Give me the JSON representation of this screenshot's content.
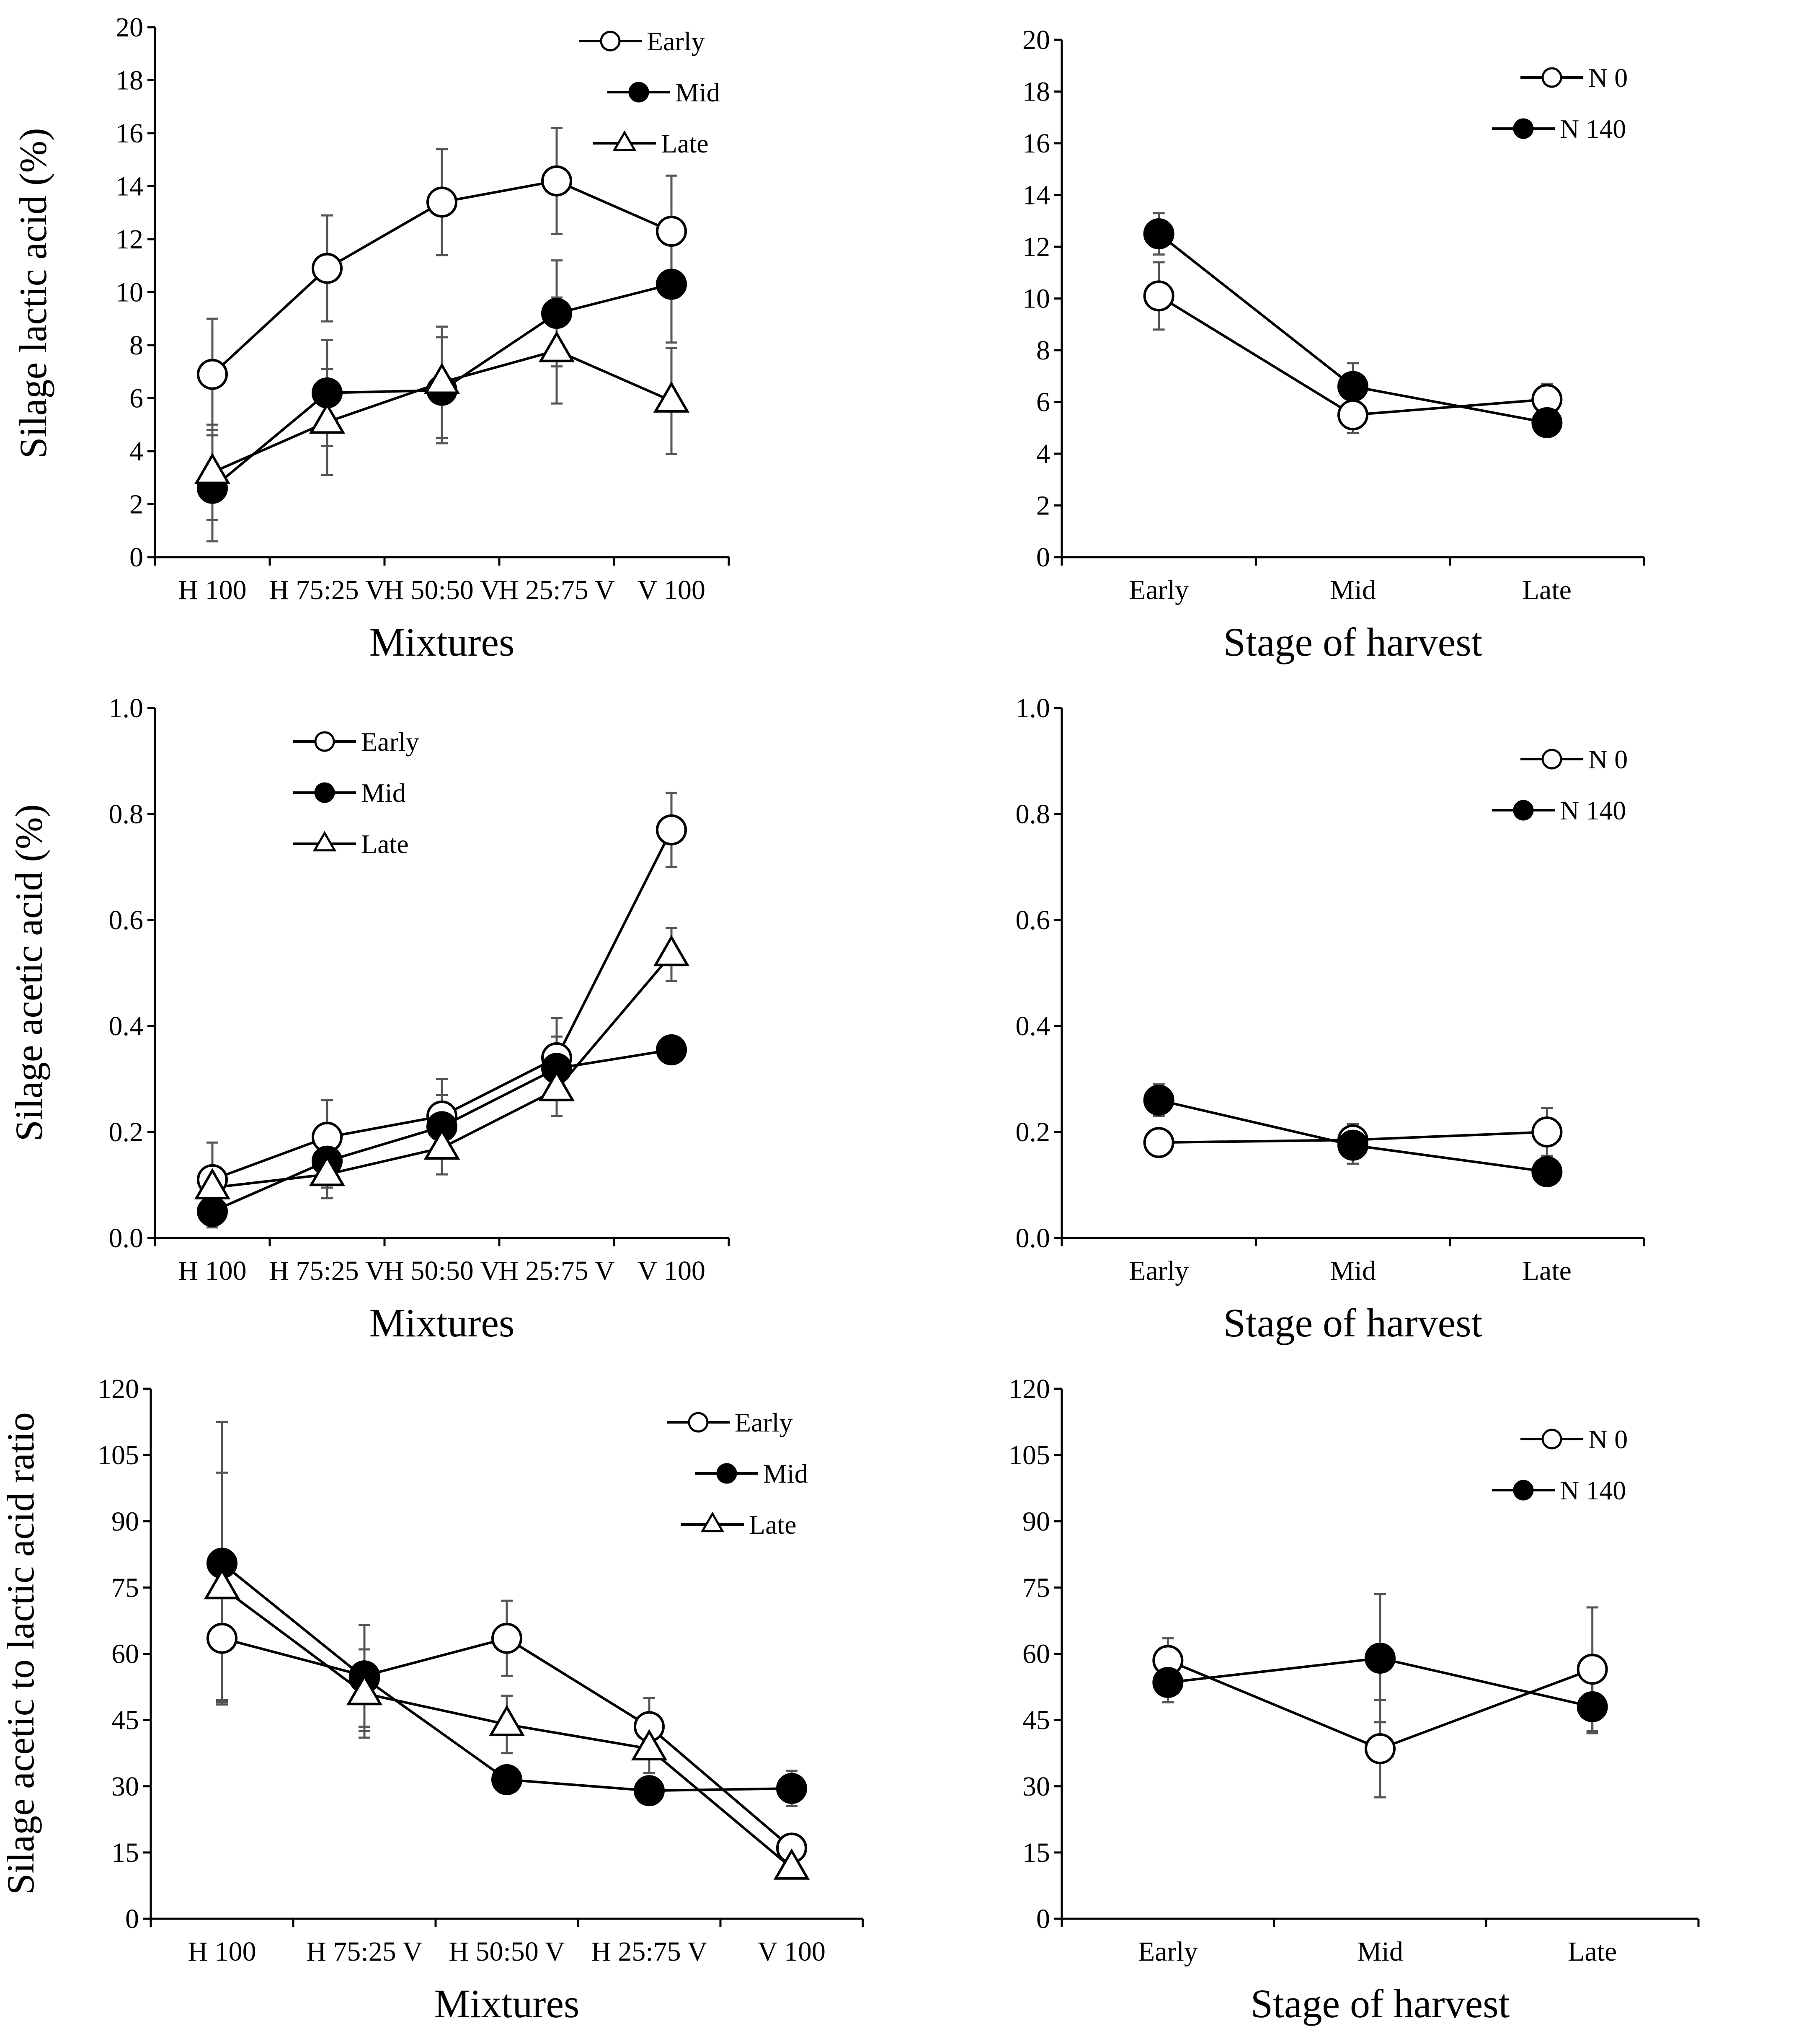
{
  "colors": {
    "ink": "#000000",
    "open_fill": "#ffffff",
    "error_bar": "#555555"
  },
  "chart_data": [
    {
      "id": "lactic-mixtures",
      "type": "line",
      "ylabel": "Silage lactic acid (%)",
      "xlabel": "Mixtures",
      "categories": [
        "H 100",
        "H 75:25 V",
        "H 50:50 V",
        "H 25:75 V",
        "V 100"
      ],
      "ylim": [
        0,
        20
      ],
      "yticks": [
        0,
        2,
        4,
        6,
        8,
        10,
        12,
        14,
        16,
        18,
        20
      ],
      "ytick_labels": [
        "0",
        "2",
        "4",
        "6",
        "8",
        "10",
        "12",
        "14",
        "16",
        "18",
        "20"
      ],
      "legend_position": "top-right",
      "series": [
        {
          "name": "Early",
          "marker": "open-circle",
          "values": [
            6.9,
            10.9,
            13.4,
            14.2,
            12.3
          ],
          "errors": [
            2.1,
            2.0,
            2.0,
            2.0,
            2.1
          ]
        },
        {
          "name": "Mid",
          "marker": "filled-circle",
          "values": [
            2.6,
            6.2,
            6.3,
            9.2,
            10.3
          ],
          "errors": [
            2.0,
            2.0,
            2.0,
            2.0,
            2.2
          ]
        },
        {
          "name": "Late",
          "marker": "open-triangle",
          "values": [
            3.2,
            5.1,
            6.6,
            7.8,
            5.9
          ],
          "errors": [
            1.8,
            2.0,
            2.1,
            2.0,
            2.0
          ]
        }
      ]
    },
    {
      "id": "lactic-stage",
      "type": "line",
      "ylabel": "",
      "xlabel": "Stage  of  harvest",
      "categories": [
        "Early",
        "Mid",
        "Late"
      ],
      "ylim": [
        0,
        20
      ],
      "yticks": [
        0,
        2,
        4,
        6,
        8,
        10,
        12,
        14,
        16,
        18,
        20
      ],
      "ytick_labels": [
        "0",
        "2",
        "4",
        "6",
        "8",
        "10",
        "12",
        "14",
        "16",
        "18",
        "20"
      ],
      "legend_position": "top-right",
      "series": [
        {
          "name": "N 0",
          "marker": "open-circle",
          "values": [
            10.1,
            5.5,
            6.1
          ],
          "errors": [
            1.3,
            0.7,
            0.6
          ]
        },
        {
          "name": "N 140",
          "marker": "filled-circle",
          "values": [
            12.5,
            6.6,
            5.2
          ],
          "errors": [
            0.8,
            0.9,
            0.4
          ]
        }
      ]
    },
    {
      "id": "acetic-mixtures",
      "type": "line",
      "ylabel": "Silage acetic acid (%)",
      "xlabel": "Mixtures",
      "categories": [
        "H 100",
        "H 75:25 V",
        "H 50:50 V",
        "H 25:75 V",
        "V 100"
      ],
      "ylim": [
        0,
        1
      ],
      "yticks": [
        0,
        0.2,
        0.4,
        0.6,
        0.8,
        1.0
      ],
      "ytick_labels": [
        "0.0",
        "0.2",
        "0.4",
        "0.6",
        "0.8",
        "1.0"
      ],
      "legend_position": "top-left",
      "series": [
        {
          "name": "Early",
          "marker": "open-circle",
          "values": [
            0.11,
            0.19,
            0.23,
            0.34,
            0.77
          ],
          "errors": [
            0.07,
            0.07,
            0.07,
            0.075,
            0.07
          ]
        },
        {
          "name": "Mid",
          "marker": "filled-circle",
          "values": [
            0.05,
            0.145,
            0.21,
            0.32,
            0.355
          ],
          "errors": [
            0.03,
            0.05,
            0.06,
            0.06,
            0.02
          ]
        },
        {
          "name": "Late",
          "marker": "open-triangle",
          "values": [
            0.095,
            0.12,
            0.17,
            0.28,
            0.535
          ],
          "errors": [
            0.04,
            0.045,
            0.05,
            0.05,
            0.05
          ]
        }
      ]
    },
    {
      "id": "acetic-stage",
      "type": "line",
      "ylabel": "",
      "xlabel": "Stage  of  harvest",
      "categories": [
        "Early",
        "Mid",
        "Late"
      ],
      "ylim": [
        0,
        1
      ],
      "yticks": [
        0,
        0.2,
        0.4,
        0.6,
        0.8,
        1.0
      ],
      "ytick_labels": [
        "0.0",
        "0.2",
        "0.4",
        "0.6",
        "0.8",
        "1.0"
      ],
      "legend_position": "top-right",
      "series": [
        {
          "name": "N 0",
          "marker": "open-circle",
          "values": [
            0.18,
            0.185,
            0.2
          ],
          "errors": [
            0.02,
            0.03,
            0.045
          ]
        },
        {
          "name": "N 140",
          "marker": "filled-circle",
          "values": [
            0.26,
            0.175,
            0.125
          ],
          "errors": [
            0.03,
            0.035,
            0.02
          ]
        }
      ]
    },
    {
      "id": "ratio-mixtures",
      "type": "line",
      "ylabel": "Silage acetic to lactic acid ratio",
      "xlabel": "Mixtures",
      "categories": [
        "H 100",
        "H 75:25 V",
        "H 50:50 V",
        "H 25:75 V",
        "V 100"
      ],
      "ylim": [
        0,
        120
      ],
      "yticks": [
        0,
        15,
        30,
        45,
        60,
        75,
        90,
        105,
        120
      ],
      "ytick_labels": [
        "0",
        "15",
        "30",
        "45",
        "60",
        "75",
        "90",
        "105",
        "120"
      ],
      "legend_position": "top-right",
      "series": [
        {
          "name": "Early",
          "marker": "open-circle",
          "values": [
            63.5,
            55,
            63.5,
            43.5,
            16
          ],
          "errors": [
            14,
            11.5,
            8.5,
            6.5,
            3
          ]
        },
        {
          "name": "Mid",
          "marker": "filled-circle",
          "values": [
            80.5,
            54.5,
            31.5,
            29,
            29.5
          ],
          "errors": [
            32,
            12,
            2,
            2,
            4
          ]
        },
        {
          "name": "Late",
          "marker": "open-triangle",
          "values": [
            75,
            51,
            44,
            38.5,
            11.5
          ],
          "errors": [
            26,
            10,
            6.5,
            5.5,
            2
          ]
        }
      ]
    },
    {
      "id": "ratio-stage",
      "type": "line",
      "ylabel": "",
      "xlabel": "Stage  of  harvest",
      "categories": [
        "Early",
        "Mid",
        "Late"
      ],
      "ylim": [
        0,
        120
      ],
      "yticks": [
        0,
        15,
        30,
        45,
        60,
        75,
        90,
        105,
        120
      ],
      "ytick_labels": [
        "0",
        "15",
        "30",
        "45",
        "60",
        "75",
        "90",
        "105",
        "120"
      ],
      "legend_position": "top-right",
      "series": [
        {
          "name": "N 0",
          "marker": "open-circle",
          "values": [
            58.5,
            38.5,
            56.5
          ],
          "errors": [
            5,
            11,
            14
          ]
        },
        {
          "name": "N 140",
          "marker": "filled-circle",
          "values": [
            53.5,
            59,
            48
          ],
          "errors": [
            4.5,
            14.5,
            6
          ]
        }
      ]
    }
  ]
}
